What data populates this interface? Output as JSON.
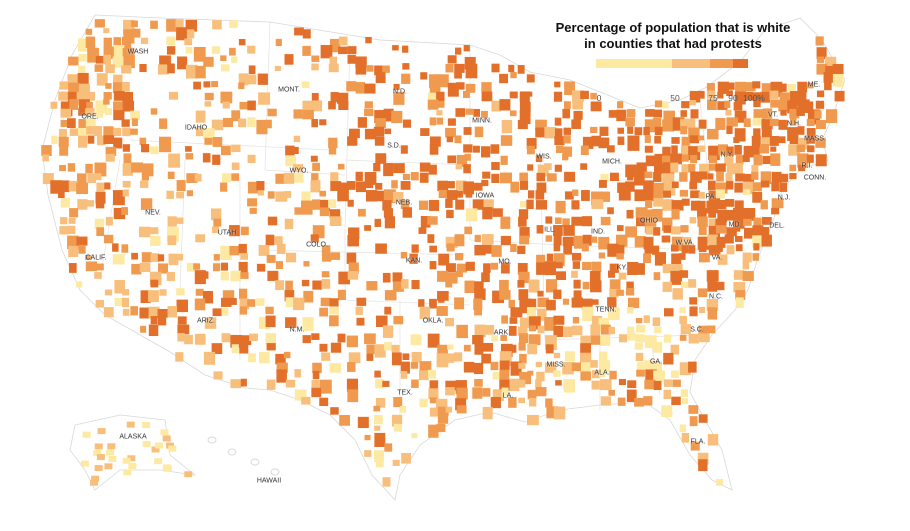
{
  "legend": {
    "title_line1": "Percentage of population that is white",
    "title_line2": "in counties that had protests",
    "ticks": [
      "0",
      "50",
      "75",
      "90",
      "100%"
    ],
    "bins": [
      {
        "from": 0,
        "to": 50,
        "color": "#fde9a1"
      },
      {
        "from": 50,
        "to": 75,
        "color": "#f8bf7c"
      },
      {
        "from": 75,
        "to": 90,
        "color": "#f09a4f"
      },
      {
        "from": 90,
        "to": 100,
        "color": "#e2702a"
      }
    ]
  },
  "map": {
    "base_color": "#ffffff",
    "border_color": "#d8d8d8",
    "state_labels": [
      "WASH",
      "MONT.",
      "N.D.",
      "MINN.",
      "ORE.",
      "IDAHO",
      "S.D.",
      "WIS.",
      "MICH.",
      "ME.",
      "VT.",
      "N.H.",
      "MASS.",
      "R.I.",
      "CONN.",
      "N.Y.",
      "WYO.",
      "NEB.",
      "IOWA",
      "PA.",
      "N.J.",
      "NEV.",
      "UTAH",
      "COLO.",
      "ILL.",
      "IND.",
      "OHIO",
      "MD.",
      "DEL.",
      "W.VA.",
      "VA.",
      "CALIF.",
      "KAN.",
      "MO.",
      "KY.",
      "N.C.",
      "TENN.",
      "OKLA.",
      "ARIZ.",
      "N.M.",
      "ARK.",
      "S.C.",
      "MISS.",
      "ALA.",
      "GA.",
      "TEX.",
      "LA.",
      "FLA.",
      "ALASKA",
      "HAWAII"
    ]
  }
}
